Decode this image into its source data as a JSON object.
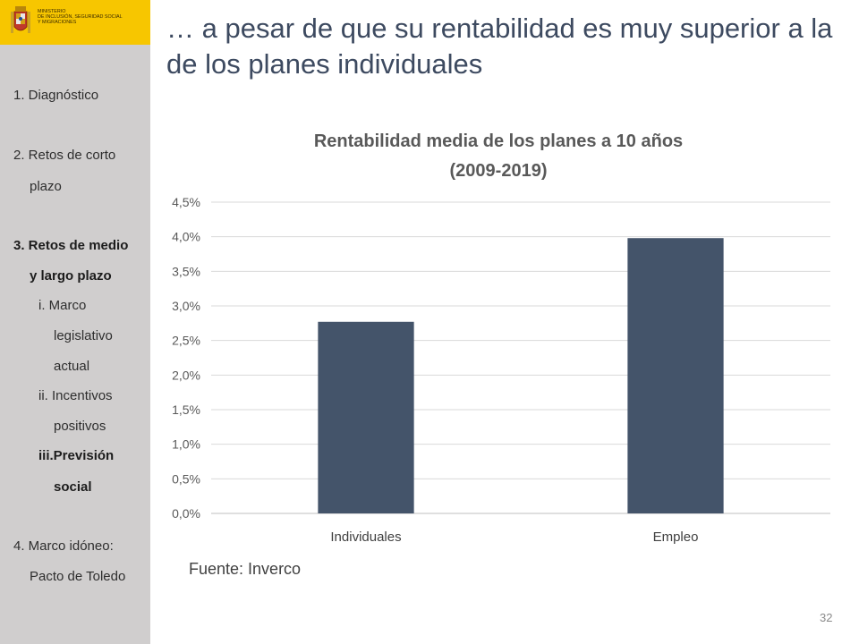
{
  "logo": {
    "ministry_lines": [
      "MINISTERIO",
      "DE INCLUSIÓN, SEGURIDAD SOCIAL",
      "Y MIGRACIONES"
    ],
    "color": "#f7c600"
  },
  "sidebar": {
    "items": [
      {
        "text": "1. Diagnóstico",
        "bold": false
      },
      {
        "text": "2. Retos de corto",
        "bold": false
      },
      {
        "text": "plazo",
        "bold": false
      },
      {
        "text": "3. Retos de medio",
        "bold": true
      },
      {
        "text": "y largo plazo",
        "bold": true
      },
      {
        "text": "i.  Marco",
        "bold": false
      },
      {
        "text": "legislativo",
        "bold": false
      },
      {
        "text": "actual",
        "bold": false
      },
      {
        "text": "ii. Incentivos",
        "bold": false
      },
      {
        "text": "positivos",
        "bold": false
      },
      {
        "text": "iii.Previsión",
        "bold": true
      },
      {
        "text": "social",
        "bold": true
      },
      {
        "text": "4. Marco idóneo:",
        "bold": false
      },
      {
        "text": "Pacto de Toledo",
        "bold": false
      }
    ]
  },
  "slide": {
    "title": "… a pesar de que su rentabilidad es muy superior a la de los planes individuales",
    "source": "Fuente: Inverco",
    "page_number": "32"
  },
  "chart_data": {
    "type": "bar",
    "title_lines": [
      "Rentabilidad media de los planes a 10 años",
      "(2009-2019)"
    ],
    "categories": [
      "Individuales",
      "Empleo"
    ],
    "values": [
      0.0277,
      0.0398
    ],
    "ylim": [
      0,
      0.045
    ],
    "yticks": [
      "0,0%",
      "0,5%",
      "1,0%",
      "1,5%",
      "2,0%",
      "2,5%",
      "3,0%",
      "3,5%",
      "4,0%",
      "4,5%"
    ],
    "bar_color": "#44546a",
    "grid": true
  }
}
